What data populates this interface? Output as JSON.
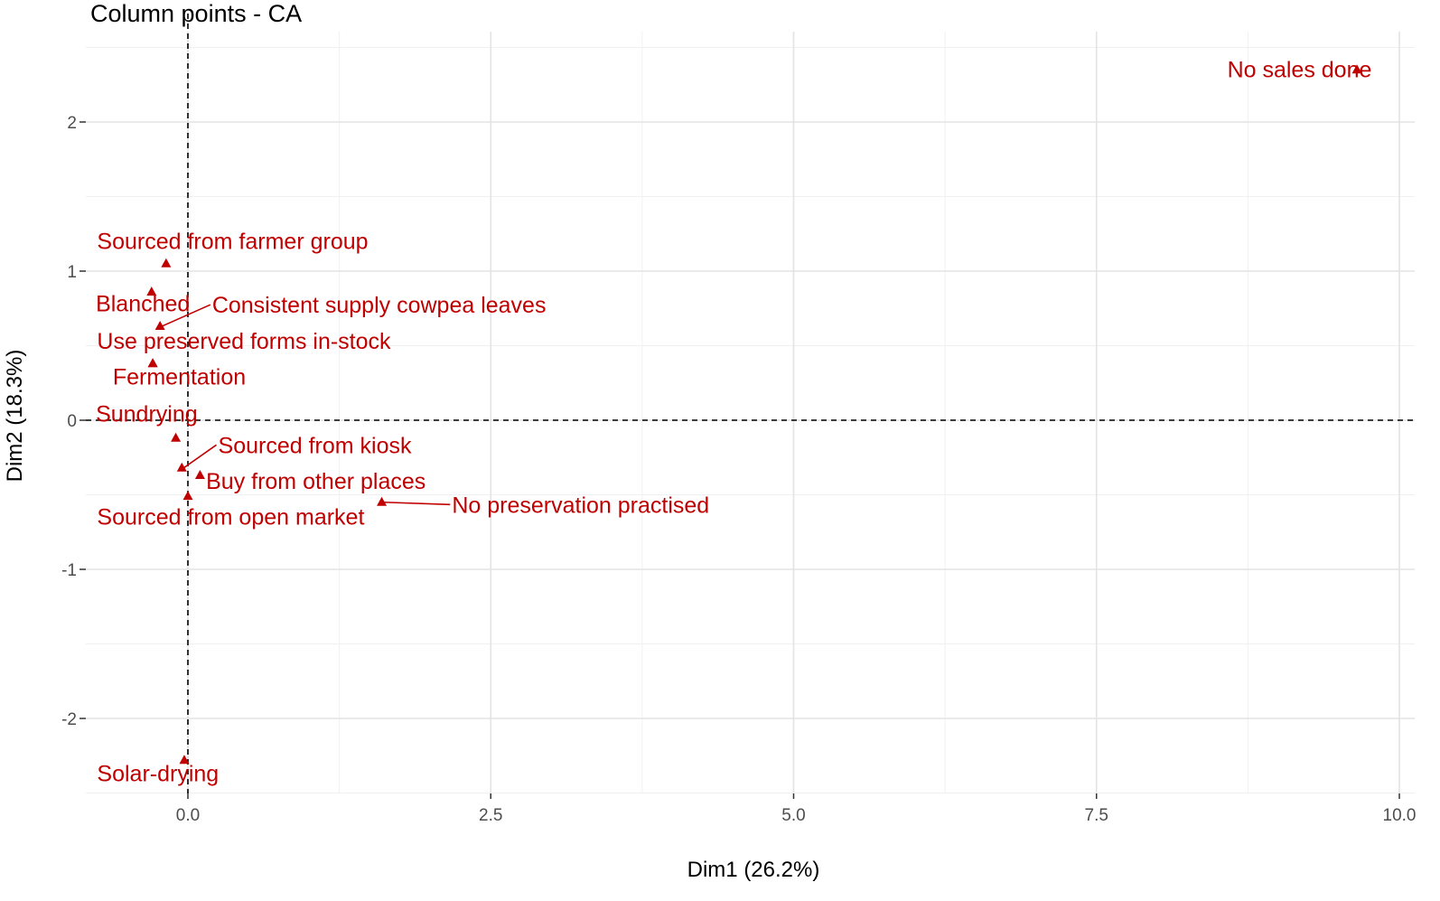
{
  "chart_data": {
    "type": "scatter",
    "title": "Column points - CA",
    "xlabel": "Dim1 (26.2%)",
    "ylabel": "Dim2 (18.3%)",
    "xlim": [
      -0.8,
      10.0
    ],
    "ylim": [
      -2.5,
      2.55
    ],
    "x_ticks": [
      {
        "value": 0.0,
        "label": "0.0"
      },
      {
        "value": 2.5,
        "label": "2.5"
      },
      {
        "value": 5.0,
        "label": "5.0"
      },
      {
        "value": 7.5,
        "label": "7.5"
      },
      {
        "value": 10.0,
        "label": "10.0"
      }
    ],
    "y_ticks": [
      {
        "value": -2,
        "label": "-2"
      },
      {
        "value": -1,
        "label": "-1"
      },
      {
        "value": 0,
        "label": "0"
      },
      {
        "value": 1,
        "label": "1"
      },
      {
        "value": 2,
        "label": "2"
      }
    ],
    "grid": true,
    "reference_lines": {
      "x": 0,
      "y": 0,
      "style": "dashed"
    },
    "point_color": "#c00000",
    "points": [
      {
        "label": "No sales done",
        "x": 9.65,
        "y": 2.35,
        "label_x": 8.58,
        "label_y": 2.3,
        "connector": false
      },
      {
        "label": "Sourced from farmer group",
        "x": -0.18,
        "y": 1.05,
        "label_x": -0.75,
        "label_y": 1.15,
        "connector": false
      },
      {
        "label": "Blanched",
        "x": -0.3,
        "y": 0.86,
        "label_x": -0.76,
        "label_y": 0.73,
        "connector": false
      },
      {
        "label": "Consistent supply cowpea leaves",
        "x": -0.23,
        "y": 0.63,
        "label_x": 0.2,
        "label_y": 0.72,
        "connector": true
      },
      {
        "label": "Use preserved forms in-stock",
        "x": -0.29,
        "y": 0.38,
        "label_x": -0.75,
        "label_y": 0.48,
        "connector": false
      },
      {
        "label": "Fermentation",
        "x": -0.29,
        "y": 0.38,
        "label_x": -0.62,
        "label_y": 0.24,
        "connector": false
      },
      {
        "label": "Sundrying",
        "x": -0.1,
        "y": -0.12,
        "label_x": -0.76,
        "label_y": -0.01,
        "connector": false
      },
      {
        "label": "Sourced from kiosk",
        "x": -0.05,
        "y": -0.32,
        "label_x": 0.25,
        "label_y": -0.22,
        "connector": true
      },
      {
        "label": "Buy from other places",
        "x": 0.1,
        "y": -0.37,
        "label_x": 0.15,
        "label_y": -0.46,
        "connector": false
      },
      {
        "label": "Sourced from open market",
        "x": 0.0,
        "y": -0.51,
        "label_x": -0.75,
        "label_y": -0.7,
        "connector": false
      },
      {
        "label": "No preservation practised",
        "x": 1.6,
        "y": -0.55,
        "label_x": 2.18,
        "label_y": -0.62,
        "connector": true
      },
      {
        "label": "Solar-drying",
        "x": -0.03,
        "y": -2.28,
        "label_x": -0.75,
        "label_y": -2.42,
        "connector": false
      }
    ]
  }
}
